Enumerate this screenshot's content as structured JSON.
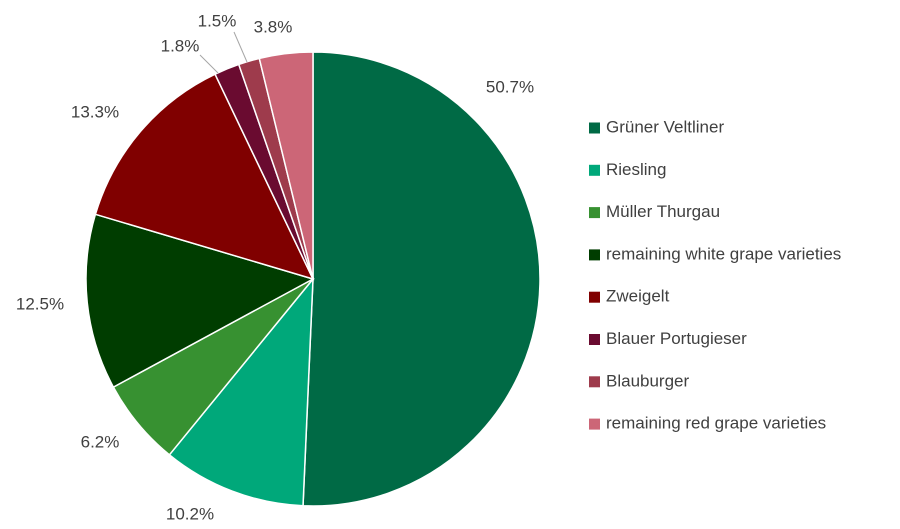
{
  "chart_data": {
    "type": "pie",
    "categories": [
      "Grüner Veltliner",
      "Riesling",
      "Müller Thurgau",
      "remaining white grape varieties",
      "Zweigelt",
      "Blauer Portugieser",
      "Blauburger",
      "remaining red grape varieties"
    ],
    "values": [
      50.7,
      10.2,
      6.2,
      12.5,
      13.3,
      1.8,
      1.5,
      3.8
    ],
    "value_labels": [
      "50.7%",
      "10.2%",
      "6.2%",
      "12.5%",
      "13.3%",
      "1.8%",
      "1.5%",
      "3.8%"
    ],
    "colors": [
      "#006a45",
      "#00a87a",
      "#379131",
      "#003d00",
      "#800000",
      "#6a0b30",
      "#9e3b4c",
      "#cc6677"
    ],
    "legend": "right"
  }
}
